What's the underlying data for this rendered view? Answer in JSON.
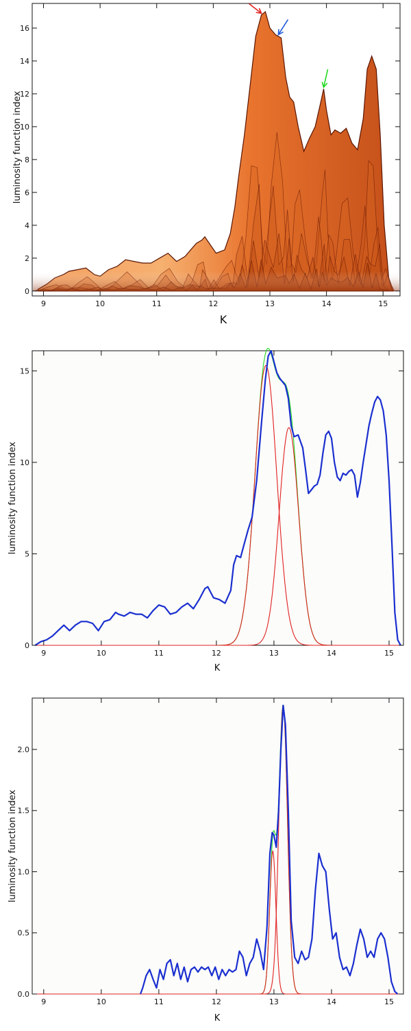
{
  "chart_data": [
    {
      "type": "area",
      "subtype": "3d-surface",
      "xlabel": "K",
      "ylabel": "luminosity function index",
      "xlim": [
        8.8,
        15.3
      ],
      "ylim": [
        -0.3,
        17.5
      ],
      "xticks": [
        9,
        10,
        11,
        12,
        13,
        14,
        15
      ],
      "yticks": [
        0,
        2,
        4,
        6,
        8,
        10,
        12,
        14,
        16
      ],
      "grid": false,
      "colors": {
        "surface_light": "#f6b070",
        "surface_mid": "#e8742e",
        "surface_dark": "#8a2a08",
        "edge": "#5a1402"
      },
      "envelope": {
        "x": [
          8.9,
          9.05,
          9.2,
          9.35,
          9.45,
          9.6,
          9.75,
          9.9,
          10.0,
          10.15,
          10.3,
          10.45,
          10.6,
          10.75,
          10.9,
          11.05,
          11.2,
          11.35,
          11.5,
          11.6,
          11.7,
          11.8,
          11.85,
          11.95,
          12.05,
          12.2,
          12.3,
          12.38,
          12.45,
          12.55,
          12.65,
          12.75,
          12.85,
          12.92,
          13.0,
          13.1,
          13.2,
          13.28,
          13.35,
          13.42,
          13.5,
          13.6,
          13.7,
          13.8,
          13.9,
          13.95,
          14.0,
          14.08,
          14.15,
          14.25,
          14.35,
          14.45,
          14.55,
          14.65,
          14.72,
          14.8,
          14.88,
          14.95,
          15.02,
          15.1,
          15.18
        ],
        "y": [
          0.1,
          0.4,
          0.8,
          1.0,
          1.2,
          1.3,
          1.4,
          1.0,
          0.9,
          1.3,
          1.5,
          1.9,
          1.8,
          1.7,
          1.7,
          2.0,
          2.3,
          1.8,
          2.1,
          2.5,
          2.9,
          3.1,
          3.3,
          2.8,
          2.3,
          2.5,
          3.5,
          5.1,
          7.0,
          9.5,
          12.5,
          15.5,
          16.8,
          17.0,
          16.0,
          15.6,
          15.4,
          13.0,
          11.8,
          11.5,
          10.0,
          8.5,
          9.3,
          10.0,
          11.5,
          12.3,
          11.0,
          9.5,
          9.8,
          9.6,
          9.9,
          9.0,
          8.6,
          10.5,
          13.5,
          14.3,
          13.5,
          9.5,
          4.0,
          0.8,
          0.0
        ]
      },
      "arrows": [
        {
          "color": "#e02020",
          "x": 12.85,
          "y": 16.9
        },
        {
          "color": "#1e5ad8",
          "x": 13.15,
          "y": 15.6
        },
        {
          "color": "#22d822",
          "x": 13.95,
          "y": 12.4
        }
      ]
    },
    {
      "type": "line",
      "xlabel": "K",
      "ylabel": "luminosity function index",
      "xlim": [
        8.8,
        15.25
      ],
      "ylim": [
        0,
        16.1
      ],
      "xticks": [
        9,
        10,
        11,
        12,
        13,
        14,
        15
      ],
      "yticks": [
        0,
        5,
        10,
        15
      ],
      "grid": false,
      "series": [
        {
          "color": "#1a2fd0",
          "x": [
            8.85,
            8.95,
            9.05,
            9.15,
            9.25,
            9.35,
            9.45,
            9.55,
            9.65,
            9.75,
            9.85,
            9.95,
            10.05,
            10.15,
            10.25,
            10.3,
            10.4,
            10.5,
            10.6,
            10.7,
            10.8,
            10.9,
            11.0,
            11.1,
            11.2,
            11.3,
            11.4,
            11.5,
            11.6,
            11.7,
            11.8,
            11.85,
            11.95,
            12.05,
            12.15,
            12.25,
            12.3,
            12.35,
            12.42,
            12.48,
            12.55,
            12.62,
            12.7,
            12.78,
            12.85,
            12.9,
            12.95,
            13.0,
            13.05,
            13.1,
            13.15,
            13.2,
            13.25,
            13.3,
            13.35,
            13.42,
            13.5,
            13.55,
            13.6,
            13.65,
            13.7,
            13.75,
            13.8,
            13.85,
            13.9,
            13.95,
            14.0,
            14.05,
            14.1,
            14.15,
            14.2,
            14.25,
            14.3,
            14.35,
            14.4,
            14.45,
            14.5,
            14.55,
            14.6,
            14.65,
            14.7,
            14.75,
            14.8,
            14.85,
            14.9,
            14.95,
            15.0,
            15.05,
            15.1,
            15.15,
            15.2
          ],
          "y": [
            0.0,
            0.2,
            0.3,
            0.5,
            0.8,
            1.1,
            0.8,
            1.1,
            1.3,
            1.3,
            1.2,
            0.8,
            1.3,
            1.4,
            1.8,
            1.7,
            1.6,
            1.8,
            1.7,
            1.7,
            1.5,
            1.9,
            2.2,
            2.1,
            1.7,
            1.8,
            2.1,
            2.3,
            2.0,
            2.5,
            3.1,
            3.2,
            2.6,
            2.5,
            2.3,
            3.0,
            4.4,
            4.9,
            4.8,
            5.5,
            6.3,
            7.0,
            9.0,
            12.0,
            14.5,
            15.8,
            16.1,
            15.5,
            14.9,
            14.6,
            14.4,
            14.2,
            13.5,
            12.0,
            11.4,
            11.5,
            10.8,
            9.6,
            8.3,
            8.5,
            8.7,
            8.8,
            9.3,
            10.5,
            11.5,
            11.7,
            11.3,
            10.0,
            9.2,
            9.0,
            9.4,
            9.3,
            9.5,
            9.6,
            9.3,
            8.1,
            8.9,
            10.0,
            11.0,
            12.0,
            12.7,
            13.3,
            13.6,
            13.4,
            12.8,
            11.5,
            9.0,
            5.5,
            1.8,
            0.3,
            0.0
          ]
        },
        {
          "color": "#22d822",
          "gaussians": [
            {
              "mu": 12.86,
              "sigma": 0.19,
              "amp": 15.3
            },
            {
              "mu": 13.26,
              "sigma": 0.17,
              "amp": 11.9
            }
          ]
        },
        {
          "color": "#e02020",
          "gaussian": {
            "mu": 12.86,
            "sigma": 0.19,
            "amp": 15.3
          }
        },
        {
          "color": "#e02020",
          "gaussian": {
            "mu": 13.26,
            "sigma": 0.17,
            "amp": 11.9
          }
        }
      ]
    },
    {
      "type": "line",
      "xlabel": "K",
      "ylabel": "luminosity function index",
      "xlim": [
        8.8,
        15.25
      ],
      "ylim": [
        0,
        2.42
      ],
      "xticks": [
        9,
        10,
        11,
        12,
        13,
        14,
        15
      ],
      "yticks": [
        0.0,
        0.5,
        1.0,
        1.5,
        2.0
      ],
      "ytick_labels": [
        "0.0",
        "0.5",
        "1.0",
        "1.5",
        "2.0"
      ],
      "grid": false,
      "series": [
        {
          "color": "#1a2fd0",
          "x": [
            10.68,
            10.72,
            10.78,
            10.84,
            10.9,
            10.96,
            11.02,
            11.08,
            11.14,
            11.2,
            11.26,
            11.32,
            11.38,
            11.44,
            11.5,
            11.56,
            11.62,
            11.68,
            11.74,
            11.8,
            11.86,
            11.92,
            11.98,
            12.04,
            12.1,
            12.16,
            12.22,
            12.28,
            12.34,
            12.4,
            12.46,
            12.52,
            12.58,
            12.64,
            12.7,
            12.76,
            12.82,
            12.88,
            12.93,
            12.97,
            13.0,
            13.04,
            13.08,
            13.12,
            13.16,
            13.2,
            13.25,
            13.3,
            13.36,
            13.42,
            13.48,
            13.54,
            13.6,
            13.66,
            13.72,
            13.78,
            13.84,
            13.9,
            13.96,
            14.02,
            14.08,
            14.14,
            14.2,
            14.26,
            14.32,
            14.38,
            14.44,
            14.5,
            14.56,
            14.62,
            14.68,
            14.74,
            14.8,
            14.86,
            14.92,
            14.98,
            15.04,
            15.1,
            15.15
          ],
          "y": [
            0.0,
            0.05,
            0.15,
            0.2,
            0.12,
            0.05,
            0.2,
            0.12,
            0.25,
            0.28,
            0.15,
            0.25,
            0.12,
            0.22,
            0.1,
            0.2,
            0.22,
            0.18,
            0.22,
            0.2,
            0.22,
            0.15,
            0.22,
            0.12,
            0.2,
            0.15,
            0.2,
            0.18,
            0.2,
            0.35,
            0.3,
            0.15,
            0.25,
            0.3,
            0.45,
            0.35,
            0.2,
            0.55,
            1.15,
            1.32,
            1.3,
            1.2,
            1.5,
            2.0,
            2.36,
            2.2,
            1.5,
            0.6,
            0.3,
            0.25,
            0.35,
            0.28,
            0.3,
            0.45,
            0.85,
            1.15,
            1.05,
            1.0,
            0.7,
            0.45,
            0.5,
            0.3,
            0.2,
            0.22,
            0.15,
            0.25,
            0.4,
            0.53,
            0.45,
            0.3,
            0.35,
            0.3,
            0.45,
            0.5,
            0.45,
            0.3,
            0.1,
            0.02,
            0.0
          ]
        },
        {
          "color": "#22d822",
          "gaussians": [
            {
              "mu": 12.98,
              "sigma": 0.055,
              "amp": 1.17
            },
            {
              "mu": 13.16,
              "sigma": 0.075,
              "amp": 2.36
            }
          ]
        },
        {
          "color": "#e02020",
          "gaussian": {
            "mu": 12.98,
            "sigma": 0.055,
            "amp": 1.17
          }
        },
        {
          "color": "#e02020",
          "gaussian": {
            "mu": 13.16,
            "sigma": 0.075,
            "amp": 2.36
          }
        }
      ]
    }
  ]
}
